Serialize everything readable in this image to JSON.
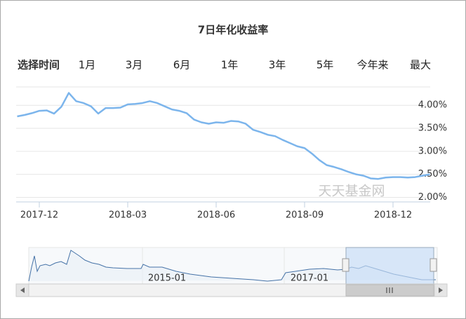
{
  "chart_data": {
    "type": "line",
    "title": "7日年化收益率",
    "categories": [
      null,
      null,
      null,
      "2017-12",
      null,
      null,
      null,
      null,
      null,
      null,
      null,
      null,
      null,
      null,
      null,
      "2018-03",
      null,
      null,
      null,
      null,
      null,
      null,
      null,
      null,
      null,
      null,
      null,
      "2018-06",
      null,
      null,
      null,
      null,
      null,
      null,
      null,
      null,
      null,
      null,
      null,
      "2018-09",
      null,
      null,
      null,
      null,
      null,
      null,
      null,
      null,
      null,
      null,
      null,
      "2018-12",
      null,
      null,
      null,
      null,
      null
    ],
    "values": [
      3.76,
      3.79,
      3.83,
      3.88,
      3.89,
      3.82,
      3.97,
      4.27,
      4.09,
      4.05,
      3.98,
      3.82,
      3.94,
      3.94,
      3.95,
      4.02,
      4.03,
      4.05,
      4.09,
      4.05,
      3.98,
      3.91,
      3.88,
      3.83,
      3.69,
      3.63,
      3.6,
      3.63,
      3.62,
      3.66,
      3.65,
      3.6,
      3.47,
      3.42,
      3.36,
      3.33,
      3.25,
      3.18,
      3.11,
      3.07,
      2.95,
      2.81,
      2.7,
      2.66,
      2.61,
      2.55,
      2.5,
      2.47,
      2.41,
      2.4,
      2.43,
      2.44,
      2.44,
      2.43,
      2.44,
      2.47,
      2.5
    ],
    "color": "#7cb5ec",
    "ylim": [
      1.9,
      4.4
    ],
    "yticks": [
      {
        "value": 2,
        "label": "2.00%"
      },
      {
        "value": 2.5,
        "label": "2.50%"
      },
      {
        "value": 3,
        "label": "3.00%"
      },
      {
        "value": 3.5,
        "label": "3.50%"
      },
      {
        "value": 4,
        "label": "4.00%"
      }
    ],
    "grid": true
  },
  "range_selector": {
    "label": "选择时间",
    "options": [
      "1月",
      "3月",
      "6月",
      "1年",
      "3年",
      "5年",
      "今年来",
      "最大"
    ]
  },
  "watermark": "天天基金网",
  "navigator": {
    "labels": [
      "2015-01",
      "2017-01"
    ]
  }
}
